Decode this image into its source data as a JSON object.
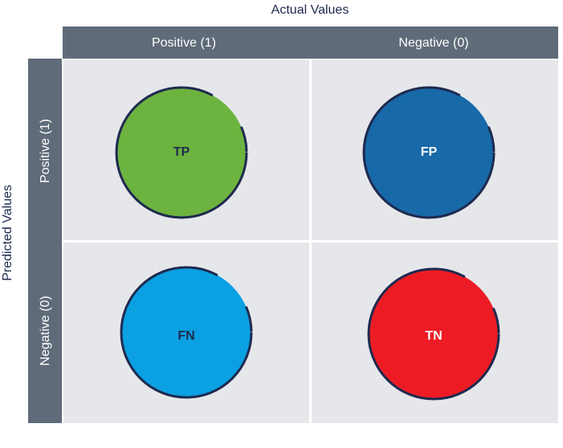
{
  "title": "Actual Values",
  "y_axis_title": "Predicted Values",
  "columns": [
    "Positive (1)",
    "Negative (0)"
  ],
  "rows": [
    "Positive (1)",
    "Negative (0)"
  ],
  "cells": [
    [
      "TP",
      "FP"
    ],
    [
      "FN",
      "TN"
    ]
  ]
}
